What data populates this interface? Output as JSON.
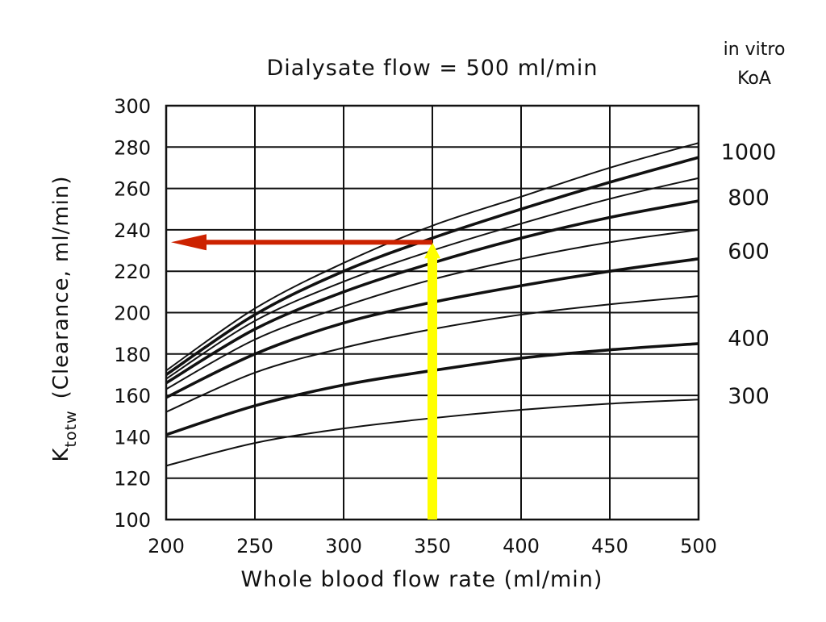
{
  "chart_data": {
    "type": "line",
    "title": "Dialysate flow = 500 ml/min",
    "xlabel": "Whole blood flow rate (ml/min)",
    "ylabel_main": "K",
    "ylabel_sub": "totw",
    "ylabel_rest": "(Clearance, ml/min)",
    "xlim": [
      200,
      500
    ],
    "ylim": [
      100,
      300
    ],
    "xticks": [
      200,
      250,
      300,
      350,
      400,
      450,
      500
    ],
    "yticks": [
      100,
      120,
      140,
      160,
      180,
      200,
      220,
      240,
      260,
      280,
      300
    ],
    "grid": true,
    "right_header_line1": "in vitro",
    "right_header_line2": "KoA",
    "koa_labels": [
      {
        "text": "1000",
        "y": 278
      },
      {
        "text": "800",
        "y": 256
      },
      {
        "text": "600",
        "y": 230
      },
      {
        "text": "400",
        "y": 188
      },
      {
        "text": "300",
        "y": 160
      }
    ],
    "x": [
      200,
      250,
      300,
      350,
      400,
      450,
      500
    ],
    "series": [
      {
        "values": [
          172,
          202,
          224,
          242,
          256,
          270,
          282
        ],
        "bold": false
      },
      {
        "values": [
          170,
          199,
          220,
          236,
          250,
          263,
          275
        ],
        "bold": true
      },
      {
        "values": [
          168,
          196,
          215,
          230,
          243,
          255,
          265
        ],
        "bold": false
      },
      {
        "values": [
          166,
          192,
          210,
          224,
          236,
          246,
          254
        ],
        "bold": true
      },
      {
        "values": [
          163,
          187,
          203,
          216,
          226,
          234,
          240
        ],
        "bold": false
      },
      {
        "values": [
          159,
          180,
          195,
          205,
          213,
          220,
          226
        ],
        "bold": true
      },
      {
        "values": [
          152,
          171,
          183,
          192,
          199,
          204,
          208
        ],
        "bold": false
      },
      {
        "values": [
          141,
          155,
          165,
          172,
          178,
          182,
          185
        ],
        "bold": true
      },
      {
        "values": [
          126,
          137,
          144,
          149,
          153,
          156,
          158
        ],
        "bold": false
      }
    ],
    "annotations": {
      "yellow_arrow": {
        "x": 350,
        "y_from": 100,
        "y_to": 234,
        "color": "#ffff00"
      },
      "red_arrow": {
        "y": 234,
        "x_from": 350,
        "x_to": 200,
        "color": "#cc2200"
      }
    }
  }
}
